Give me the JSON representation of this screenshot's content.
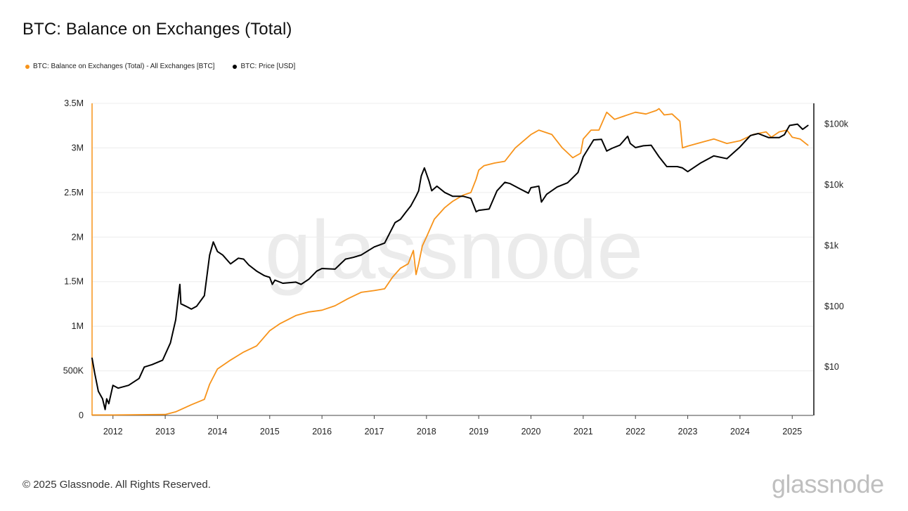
{
  "title": "BTC: Balance on Exchanges (Total)",
  "legend": [
    {
      "label": "BTC: Balance on Exchanges (Total) - All Exchanges [BTC]",
      "color": "#f7931a"
    },
    {
      "label": "BTC: Price [USD]",
      "color": "#000000"
    }
  ],
  "footer": "© 2025 Glassnode. All Rights Reserved.",
  "brand": "glassnode",
  "watermark": "glassnode",
  "chart_data": {
    "type": "line",
    "title": "BTC: Balance on Exchanges (Total)",
    "xlabel": "",
    "ylabel_left": "",
    "ylabel_right": "",
    "xlim": [
      2011.6,
      2025.4
    ],
    "x_ticks": [
      2012,
      2013,
      2014,
      2015,
      2016,
      2017,
      2018,
      2019,
      2020,
      2021,
      2022,
      2023,
      2024,
      2025
    ],
    "x_tick_labels": [
      "2012",
      "2013",
      "2014",
      "2015",
      "2016",
      "2017",
      "2018",
      "2019",
      "2020",
      "2021",
      "2022",
      "2023",
      "2024",
      "2025"
    ],
    "y_left": {
      "range": [
        0,
        3500000
      ],
      "ticks": [
        0,
        500000,
        1000000,
        1500000,
        2000000,
        2500000,
        3000000,
        3500000
      ],
      "tick_labels": [
        "0",
        "500K",
        "1M",
        "1.5M",
        "2M",
        "2.5M",
        "3M",
        "3.5M"
      ]
    },
    "y_right": {
      "scale": "log",
      "range": [
        1.6,
        220000
      ],
      "ticks": [
        10,
        100,
        1000,
        10000,
        100000
      ],
      "tick_labels": [
        "$10",
        "$100",
        "$1k",
        "$10k",
        "$100k"
      ]
    },
    "grid": true,
    "legend_position": "top-left",
    "series": [
      {
        "name": "BTC: Balance on Exchanges (Total) - All Exchanges [BTC]",
        "axis": "left",
        "color": "#f7931a",
        "x": [
          2011.6,
          2012.0,
          2012.5,
          2013.0,
          2013.2,
          2013.5,
          2013.75,
          2013.85,
          2014.0,
          2014.25,
          2014.5,
          2014.75,
          2015.0,
          2015.2,
          2015.5,
          2015.75,
          2016.0,
          2016.25,
          2016.5,
          2016.75,
          2017.0,
          2017.2,
          2017.35,
          2017.5,
          2017.65,
          2017.75,
          2017.8,
          2017.85,
          2017.92,
          2018.0,
          2018.15,
          2018.35,
          2018.5,
          2018.7,
          2018.85,
          2018.95,
          2019.0,
          2019.1,
          2019.3,
          2019.5,
          2019.7,
          2019.9,
          2020.0,
          2020.15,
          2020.4,
          2020.6,
          2020.8,
          2020.95,
          2021.0,
          2021.15,
          2021.3,
          2021.45,
          2021.6,
          2021.75,
          2021.9,
          2022.0,
          2022.2,
          2022.4,
          2022.45,
          2022.55,
          2022.7,
          2022.85,
          2022.9,
          2023.0,
          2023.25,
          2023.5,
          2023.75,
          2024.0,
          2024.25,
          2024.5,
          2024.6,
          2024.75,
          2024.9,
          2025.0,
          2025.15,
          2025.3
        ],
        "values": [
          5000,
          5000,
          8000,
          10000,
          40000,
          120000,
          180000,
          350000,
          520000,
          620000,
          710000,
          780000,
          950000,
          1030000,
          1120000,
          1160000,
          1180000,
          1230000,
          1310000,
          1380000,
          1400000,
          1420000,
          1550000,
          1650000,
          1700000,
          1850000,
          1580000,
          1700000,
          1900000,
          2000000,
          2200000,
          2330000,
          2400000,
          2470000,
          2500000,
          2650000,
          2750000,
          2800000,
          2830000,
          2850000,
          3000000,
          3100000,
          3150000,
          3200000,
          3150000,
          3000000,
          2890000,
          2940000,
          3100000,
          3200000,
          3200000,
          3400000,
          3320000,
          3350000,
          3380000,
          3400000,
          3380000,
          3420000,
          3440000,
          3370000,
          3380000,
          3300000,
          3000000,
          3020000,
          3060000,
          3100000,
          3050000,
          3080000,
          3150000,
          3180000,
          3120000,
          3180000,
          3200000,
          3120000,
          3100000,
          3030000
        ]
      },
      {
        "name": "BTC: Price [USD]",
        "axis": "right",
        "color": "#000000",
        "x": [
          2011.6,
          2011.65,
          2011.72,
          2011.8,
          2011.85,
          2011.88,
          2011.92,
          2012.0,
          2012.1,
          2012.3,
          2012.5,
          2012.6,
          2012.75,
          2012.95,
          2013.1,
          2013.2,
          2013.28,
          2013.3,
          2013.4,
          2013.5,
          2013.6,
          2013.75,
          2013.85,
          2013.92,
          2014.0,
          2014.1,
          2014.25,
          2014.4,
          2014.5,
          2014.6,
          2014.75,
          2014.9,
          2015.0,
          2015.05,
          2015.1,
          2015.25,
          2015.5,
          2015.6,
          2015.75,
          2015.9,
          2016.0,
          2016.25,
          2016.45,
          2016.6,
          2016.75,
          2017.0,
          2017.2,
          2017.4,
          2017.5,
          2017.6,
          2017.7,
          2017.8,
          2017.85,
          2017.9,
          2017.96,
          2018.05,
          2018.1,
          2018.2,
          2018.35,
          2018.5,
          2018.7,
          2018.85,
          2018.95,
          2019.0,
          2019.2,
          2019.35,
          2019.5,
          2019.6,
          2019.8,
          2019.95,
          2020.0,
          2020.15,
          2020.2,
          2020.3,
          2020.5,
          2020.7,
          2020.9,
          2021.0,
          2021.1,
          2021.2,
          2021.35,
          2021.45,
          2021.55,
          2021.7,
          2021.85,
          2021.9,
          2022.0,
          2022.15,
          2022.3,
          2022.45,
          2022.6,
          2022.8,
          2022.9,
          2023.0,
          2023.25,
          2023.5,
          2023.75,
          2024.0,
          2024.2,
          2024.35,
          2024.55,
          2024.75,
          2024.85,
          2024.95,
          2025.1,
          2025.2,
          2025.3
        ],
        "values": [
          14,
          8,
          4,
          3,
          2,
          3,
          2.5,
          5,
          4.5,
          5,
          6.5,
          10,
          11,
          13,
          25,
          60,
          230,
          110,
          100,
          90,
          100,
          150,
          700,
          1150,
          800,
          700,
          500,
          620,
          600,
          480,
          380,
          320,
          300,
          230,
          270,
          240,
          250,
          230,
          280,
          380,
          420,
          410,
          600,
          640,
          700,
          950,
          1100,
          2400,
          2700,
          3500,
          4500,
          6500,
          8000,
          14000,
          19000,
          11500,
          8000,
          9500,
          7500,
          6500,
          6500,
          6000,
          3600,
          3800,
          4000,
          8000,
          11000,
          10500,
          8500,
          7300,
          9000,
          9500,
          5200,
          7000,
          9200,
          10800,
          16000,
          29000,
          40000,
          55000,
          56000,
          36000,
          40000,
          45000,
          63000,
          48000,
          41000,
          44000,
          45000,
          29000,
          20000,
          20000,
          19000,
          16500,
          23000,
          30000,
          27000,
          42000,
          65000,
          70000,
          60000,
          60000,
          67000,
          95000,
          100000,
          82000,
          95000
        ]
      }
    ]
  }
}
